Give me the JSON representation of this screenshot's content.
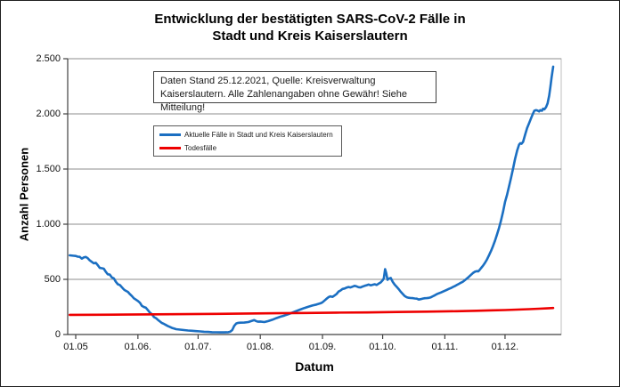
{
  "chart_data": {
    "type": "line",
    "title_lines": [
      "Entwicklung der bestätigten SARS-CoV-2 Fälle in",
      "Stadt und Kreis Kaiserslautern"
    ],
    "title": "Entwicklung der bestätigten SARS-CoV-2 Fälle in Stadt und Kreis Kaiserslautern",
    "xlabel": "Datum",
    "ylabel": "Anzahl Personen",
    "annotation": {
      "line1": "Daten Stand 25.12.2021, Quelle: Kreisverwaltung",
      "line2": "Kaiserslautern. Alle Zahlenangaben ohne Gewähr! Siehe Mitteilung!"
    },
    "grid": true,
    "legend_position": "upper-left",
    "ylim": [
      0,
      2500
    ],
    "y_ticks": [
      0,
      500,
      1000,
      1500,
      2000,
      2500
    ],
    "y_tick_labels": [
      "0",
      "500",
      "1.000",
      "1.500",
      "2.000",
      "2.500"
    ],
    "x_tick_labels": [
      "01.05",
      "01.06.",
      "01.07.",
      "01.08.",
      "01.09.",
      "01.10.",
      "01.11.",
      "01.12."
    ],
    "x_tick_days": [
      0,
      31,
      61,
      92,
      123,
      153,
      184,
      214
    ],
    "x_domain_days": [
      -4,
      242
    ],
    "x_unit": "days since 01.05.2021",
    "colors": {
      "cases": "#1b6fc2",
      "deaths": "#ee0000",
      "grid": "#8c8c8c",
      "axis": "#404040",
      "plot_border": "#bfbfbf"
    },
    "series": [
      {
        "name": "Aktuelle Fälle in Stadt und Kreis Kaiserslautern",
        "color_key": "cases",
        "points": [
          [
            -3,
            718
          ],
          [
            -1,
            714
          ],
          [
            0,
            712
          ],
          [
            1,
            706
          ],
          [
            2,
            704
          ],
          [
            3,
            688
          ],
          [
            4,
            698
          ],
          [
            5,
            703
          ],
          [
            6,
            692
          ],
          [
            7,
            672
          ],
          [
            8,
            659
          ],
          [
            9,
            645
          ],
          [
            10,
            650
          ],
          [
            11,
            628
          ],
          [
            12,
            604
          ],
          [
            13,
            601
          ],
          [
            14,
            597
          ],
          [
            15,
            568
          ],
          [
            16,
            546
          ],
          [
            17,
            543
          ],
          [
            18,
            518
          ],
          [
            19,
            509
          ],
          [
            20,
            478
          ],
          [
            21,
            456
          ],
          [
            22,
            448
          ],
          [
            23,
            428
          ],
          [
            24,
            408
          ],
          [
            25,
            396
          ],
          [
            26,
            386
          ],
          [
            27,
            366
          ],
          [
            28,
            348
          ],
          [
            29,
            328
          ],
          [
            30,
            316
          ],
          [
            31,
            304
          ],
          [
            32,
            288
          ],
          [
            33,
            260
          ],
          [
            34,
            249
          ],
          [
            35,
            243
          ],
          [
            36,
            220
          ],
          [
            37,
            198
          ],
          [
            38,
            183
          ],
          [
            39,
            158
          ],
          [
            40,
            148
          ],
          [
            41,
            132
          ],
          [
            42,
            118
          ],
          [
            43,
            104
          ],
          [
            44,
            96
          ],
          [
            45,
            86
          ],
          [
            46,
            76
          ],
          [
            47,
            68
          ],
          [
            48,
            60
          ],
          [
            49,
            54
          ],
          [
            50,
            48
          ],
          [
            52,
            44
          ],
          [
            54,
            40
          ],
          [
            56,
            36
          ],
          [
            58,
            34
          ],
          [
            60,
            31
          ],
          [
            62,
            28
          ],
          [
            64,
            25
          ],
          [
            66,
            23
          ],
          [
            68,
            21
          ],
          [
            70,
            20
          ],
          [
            72,
            19
          ],
          [
            74,
            19
          ],
          [
            76,
            21
          ],
          [
            77,
            25
          ],
          [
            78,
            40
          ],
          [
            79,
            78
          ],
          [
            80,
            100
          ],
          [
            81,
            106
          ],
          [
            82,
            107
          ],
          [
            84,
            108
          ],
          [
            86,
            113
          ],
          [
            88,
            125
          ],
          [
            89,
            131
          ],
          [
            90,
            121
          ],
          [
            91,
            116
          ],
          [
            92,
            118
          ],
          [
            94,
            113
          ],
          [
            96,
            122
          ],
          [
            98,
            134
          ],
          [
            100,
            148
          ],
          [
            102,
            161
          ],
          [
            104,
            172
          ],
          [
            106,
            185
          ],
          [
            108,
            198
          ],
          [
            110,
            213
          ],
          [
            112,
            227
          ],
          [
            114,
            240
          ],
          [
            116,
            252
          ],
          [
            118,
            263
          ],
          [
            120,
            272
          ],
          [
            122,
            283
          ],
          [
            123,
            292
          ],
          [
            124,
            308
          ],
          [
            125,
            323
          ],
          [
            126,
            339
          ],
          [
            127,
            346
          ],
          [
            128,
            341
          ],
          [
            129,
            353
          ],
          [
            130,
            367
          ],
          [
            131,
            389
          ],
          [
            132,
            399
          ],
          [
            133,
            413
          ],
          [
            134,
            417
          ],
          [
            135,
            425
          ],
          [
            136,
            431
          ],
          [
            137,
            427
          ],
          [
            138,
            434
          ],
          [
            139,
            441
          ],
          [
            140,
            436
          ],
          [
            141,
            429
          ],
          [
            142,
            427
          ],
          [
            143,
            435
          ],
          [
            144,
            441
          ],
          [
            145,
            447
          ],
          [
            146,
            453
          ],
          [
            147,
            446
          ],
          [
            148,
            451
          ],
          [
            149,
            456
          ],
          [
            150,
            449
          ],
          [
            151,
            461
          ],
          [
            152,
            472
          ],
          [
            153,
            492
          ],
          [
            153.6,
            510
          ],
          [
            154.2,
            592
          ],
          [
            154.8,
            556
          ],
          [
            155.4,
            496
          ],
          [
            156,
            506
          ],
          [
            157,
            513
          ],
          [
            158,
            478
          ],
          [
            159,
            452
          ],
          [
            160,
            432
          ],
          [
            161,
            411
          ],
          [
            162,
            388
          ],
          [
            163,
            368
          ],
          [
            164,
            348
          ],
          [
            165,
            338
          ],
          [
            166,
            333
          ],
          [
            167,
            331
          ],
          [
            168,
            330
          ],
          [
            169,
            327
          ],
          [
            170,
            325
          ],
          [
            171,
            317
          ],
          [
            172,
            321
          ],
          [
            173,
            326
          ],
          [
            174,
            329
          ],
          [
            175,
            330
          ],
          [
            176,
            332
          ],
          [
            177,
            337
          ],
          [
            178,
            347
          ],
          [
            179,
            356
          ],
          [
            180,
            366
          ],
          [
            181,
            373
          ],
          [
            182,
            381
          ],
          [
            183,
            389
          ],
          [
            184,
            397
          ],
          [
            185,
            405
          ],
          [
            186,
            414
          ],
          [
            187,
            421
          ],
          [
            188,
            431
          ],
          [
            189,
            439
          ],
          [
            190,
            449
          ],
          [
            191,
            459
          ],
          [
            192,
            469
          ],
          [
            193,
            479
          ],
          [
            194,
            493
          ],
          [
            195,
            508
          ],
          [
            196,
            523
          ],
          [
            197,
            541
          ],
          [
            198,
            557
          ],
          [
            199,
            569
          ],
          [
            200,
            575
          ],
          [
            200.6,
            572
          ],
          [
            201.2,
            582
          ],
          [
            202,
            601
          ],
          [
            203,
            623
          ],
          [
            204,
            649
          ],
          [
            205,
            681
          ],
          [
            206,
            717
          ],
          [
            207,
            757
          ],
          [
            208,
            801
          ],
          [
            209,
            851
          ],
          [
            210,
            906
          ],
          [
            211,
            966
          ],
          [
            212,
            1032
          ],
          [
            213,
            1112
          ],
          [
            214,
            1200
          ],
          [
            215,
            1266
          ],
          [
            216,
            1341
          ],
          [
            217,
            1421
          ],
          [
            218,
            1506
          ],
          [
            219,
            1591
          ],
          [
            220,
            1666
          ],
          [
            221,
            1721
          ],
          [
            221.6,
            1735
          ],
          [
            222.2,
            1729
          ],
          [
            223,
            1746
          ],
          [
            224,
            1811
          ],
          [
            225,
            1871
          ],
          [
            226,
            1916
          ],
          [
            227,
            1961
          ],
          [
            228,
            2006
          ],
          [
            228.6,
            2028
          ],
          [
            229.4,
            2034
          ],
          [
            230.2,
            2030
          ],
          [
            231,
            2022
          ],
          [
            231.6,
            2034
          ],
          [
            232.4,
            2028
          ],
          [
            233,
            2047
          ],
          [
            233.6,
            2041
          ],
          [
            234.4,
            2060
          ],
          [
            235.2,
            2095
          ],
          [
            236,
            2165
          ],
          [
            236.6,
            2240
          ],
          [
            237.2,
            2330
          ],
          [
            237.7,
            2390
          ],
          [
            238,
            2428
          ]
        ]
      },
      {
        "name": "Todesfälle",
        "color_key": "deaths",
        "points": [
          [
            -3,
            178
          ],
          [
            10,
            179
          ],
          [
            25,
            181
          ],
          [
            40,
            183
          ],
          [
            55,
            185
          ],
          [
            70,
            187
          ],
          [
            85,
            190
          ],
          [
            100,
            193
          ],
          [
            115,
            195
          ],
          [
            130,
            198
          ],
          [
            145,
            200
          ],
          [
            160,
            204
          ],
          [
            175,
            207
          ],
          [
            190,
            211
          ],
          [
            200,
            215
          ],
          [
            208,
            219
          ],
          [
            214,
            222
          ],
          [
            220,
            226
          ],
          [
            226,
            230
          ],
          [
            231,
            234
          ],
          [
            235,
            237
          ],
          [
            238,
            240
          ]
        ]
      }
    ]
  }
}
